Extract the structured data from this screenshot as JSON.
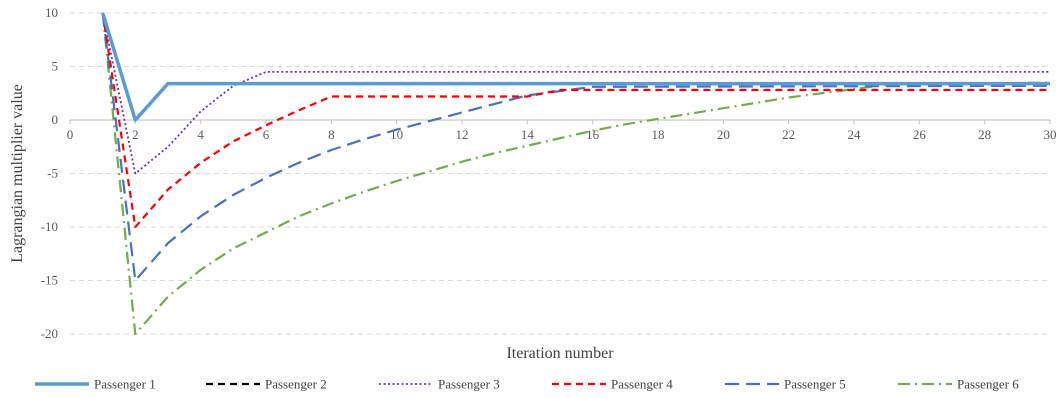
{
  "chart_data": {
    "type": "line",
    "title": "",
    "xlabel": "Iteration  number",
    "ylabel": "Lagrangian multiplier value",
    "xlim": [
      0,
      30
    ],
    "ylim": [
      -20,
      10
    ],
    "x_ticks": [
      "0",
      "2",
      "4",
      "6",
      "8",
      "10",
      "12",
      "14",
      "16",
      "18",
      "20",
      "22",
      "24",
      "26",
      "28",
      "30"
    ],
    "y_ticks": [
      "10",
      "5",
      "0",
      "-5",
      "-10",
      "-15",
      "-20"
    ],
    "grid": true,
    "legend_position": "bottom",
    "series": [
      {
        "name": "Passenger 1",
        "color": "#5b9bd5",
        "dash": "solid",
        "x": [
          1,
          2,
          3,
          30
        ],
        "y": [
          10,
          0,
          3.4,
          3.4
        ]
      },
      {
        "name": "Passenger 2",
        "color": "#000000",
        "dash": "dashed",
        "x": [
          1,
          2,
          3,
          30
        ],
        "y": [
          10,
          0,
          3.4,
          3.4
        ]
      },
      {
        "name": "Passenger 3",
        "color": "#7030a0",
        "dash": "dotted",
        "x": [
          1,
          2,
          3,
          4,
          5,
          6,
          30
        ],
        "y": [
          10,
          -5,
          -2.5,
          0.8,
          3.2,
          4.5,
          4.5
        ]
      },
      {
        "name": "Passenger 4",
        "color": "#ff0000",
        "dash": "dashed",
        "x": [
          1,
          2,
          3,
          4,
          5,
          6,
          7,
          8,
          14,
          15,
          30
        ],
        "y": [
          10,
          -10,
          -6.5,
          -4,
          -2,
          -0.5,
          0.9,
          2.2,
          2.2,
          2.8,
          2.8
        ]
      },
      {
        "name": "Passenger 5",
        "color": "#4472c4",
        "dash": "longdash",
        "x": [
          1,
          2,
          3,
          4,
          5,
          6,
          7,
          8,
          9,
          10,
          11,
          12,
          13,
          14,
          15,
          16,
          30
        ],
        "y": [
          10,
          -15,
          -11.5,
          -9,
          -7,
          -5.4,
          -4,
          -2.8,
          -1.8,
          -0.9,
          -0.1,
          0.7,
          1.5,
          2.3,
          2.7,
          3.1,
          3.2
        ]
      },
      {
        "name": "Passenger 6",
        "color": "#70ad47",
        "dash": "dashdot",
        "x": [
          1,
          2,
          3,
          4,
          5,
          6,
          7,
          8,
          9,
          10,
          11,
          12,
          13,
          14,
          15,
          16,
          17,
          18,
          19,
          20,
          21,
          22,
          23,
          24,
          25,
          30
        ],
        "y": [
          10,
          -20,
          -16.5,
          -14,
          -12,
          -10.5,
          -9,
          -7.8,
          -6.7,
          -5.7,
          -4.8,
          -3.9,
          -3.1,
          -2.4,
          -1.7,
          -1.0,
          -0.4,
          0.1,
          0.6,
          1.1,
          1.6,
          2.1,
          2.5,
          2.9,
          3.3,
          3.5
        ]
      }
    ]
  }
}
